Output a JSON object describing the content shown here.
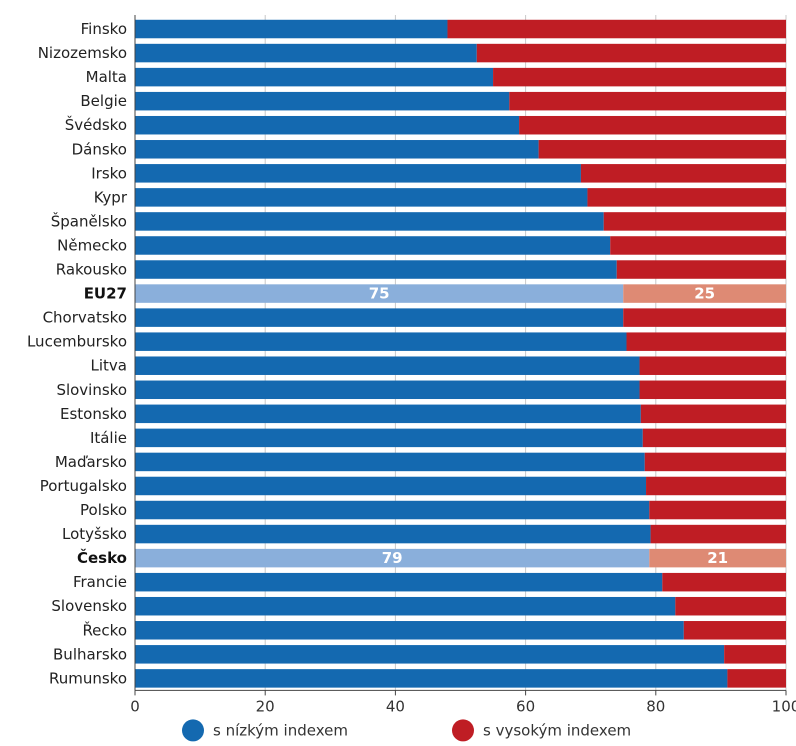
{
  "colors": {
    "low": "#1469b0",
    "high": "#bf1d24",
    "low_highlight": "#8aafdb",
    "high_highlight": "#de8a74",
    "grid": "#c8c8c8"
  },
  "chart_data": {
    "type": "bar",
    "orientation": "horizontal",
    "stacked": true,
    "categories": [
      "Finsko",
      "Nizozemsko",
      "Malta",
      "Belgie",
      "Švédsko",
      "Dánsko",
      "Irsko",
      "Kypr",
      "Španělsko",
      "Německo",
      "Rakousko",
      "EU27",
      "Chorvatsko",
      "Lucembursko",
      "Litva",
      "Slovinsko",
      "Estonsko",
      "Itálie",
      "Maďarsko",
      "Portugalsko",
      "Polsko",
      "Lotyšsko",
      "Česko",
      "Francie",
      "Slovensko",
      "Řecko",
      "Bulharsko",
      "Rumunsko"
    ],
    "highlighted": [
      "EU27",
      "Česko"
    ],
    "series": [
      {
        "name": "s nízkým indexem",
        "values": [
          48,
          52.5,
          55,
          57.5,
          59,
          62,
          68.5,
          69.5,
          72,
          73,
          74,
          75,
          75,
          75.5,
          77.5,
          77.5,
          77.7,
          78,
          78.3,
          78.5,
          79,
          79.2,
          79,
          81,
          83,
          84.3,
          90.5,
          91
        ]
      },
      {
        "name": "s vysokým indexem",
        "values": [
          52,
          47.5,
          45,
          42.5,
          41,
          38,
          31.5,
          30.5,
          28,
          27,
          26,
          25,
          25,
          24.5,
          22.5,
          22.5,
          22.3,
          22,
          21.7,
          21.5,
          21,
          20.8,
          21,
          19,
          17,
          15.7,
          9.5,
          9
        ]
      }
    ],
    "data_labels": {
      "EU27": [
        "75",
        "25"
      ],
      "Česko": [
        "79",
        "21"
      ]
    },
    "xlim": [
      0,
      100
    ],
    "xticks": [
      "0",
      "20",
      "40",
      "60",
      "80",
      "100"
    ],
    "grid": true,
    "legend_position": "bottom"
  }
}
